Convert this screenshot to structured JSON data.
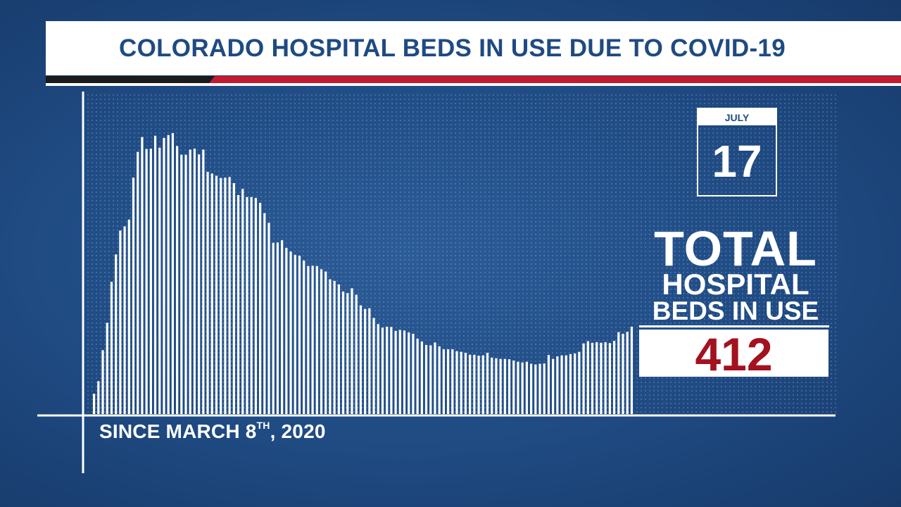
{
  "title": "COLORADO HOSPITAL BEDS IN USE DUE TO COVID-19",
  "footer": {
    "since_text": "SINCE MARCH 8",
    "since_sup": "TH",
    "since_year": ", 2020"
  },
  "calendar": {
    "month": "JULY",
    "day": "17"
  },
  "total": {
    "line1": "TOTAL",
    "line2": "HOSPITAL",
    "line3": "BEDS IN USE",
    "value": "412"
  },
  "colors": {
    "background": "#1f4a82",
    "title_text": "#1f4a82",
    "accent_red": "#c41a2e",
    "value_text": "#a3121f",
    "bars": "#ffffff"
  },
  "chart_data": {
    "type": "bar",
    "xlabel": "",
    "ylabel": "",
    "ylim": [
      0,
      1000
    ],
    "grid": false,
    "bar_color": "#ffffff",
    "values": [
      63,
      102,
      198,
      283,
      410,
      495,
      569,
      582,
      603,
      733,
      813,
      859,
      822,
      823,
      863,
      826,
      856,
      865,
      871,
      831,
      804,
      804,
      820,
      823,
      805,
      820,
      751,
      746,
      739,
      732,
      733,
      735,
      716,
      679,
      698,
      673,
      673,
      670,
      655,
      623,
      593,
      531,
      532,
      539,
      515,
      504,
      494,
      491,
      476,
      459,
      460,
      459,
      449,
      442,
      418,
      413,
      402,
      380,
      375,
      390,
      370,
      337,
      326,
      328,
      298,
      279,
      268,
      271,
      270,
      258,
      261,
      259,
      253,
      249,
      234,
      225,
      214,
      213,
      222,
      210,
      201,
      201,
      201,
      195,
      193,
      190,
      184,
      184,
      181,
      182,
      190,
      175,
      173,
      171,
      171,
      170,
      166,
      162,
      160,
      162,
      156,
      154,
      156,
      157,
      183,
      171,
      179,
      182,
      182,
      186,
      188,
      193,
      219,
      226,
      221,
      223,
      221,
      223,
      220,
      227,
      254,
      249,
      255,
      271
    ],
    "value_scale": "estimated from bar heights; no y-axis values are printed"
  }
}
